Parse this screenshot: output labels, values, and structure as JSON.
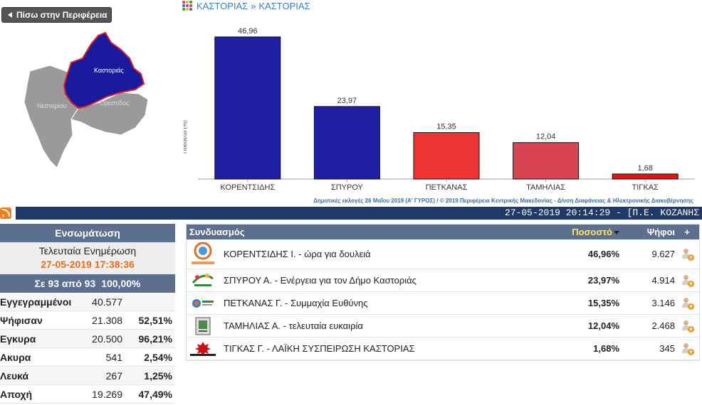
{
  "back_button": {
    "label": "Πίσω στην Περιφέρεια"
  },
  "map": {
    "regions": [
      {
        "name": "Καστοριάς",
        "color": "#1a1a9e",
        "highlighted": true
      },
      {
        "name": "Νεστορίου",
        "color": "#9a9a9a",
        "highlighted": false
      },
      {
        "name": "Ορεστίδος",
        "color": "#9a9a9a",
        "highlighted": false
      }
    ]
  },
  "breadcrumb": {
    "parent": "ΚΑΣΤΟΡΙΑΣ",
    "separator": "»",
    "current": "ΚΑΣΤΟΡΙΑΣ"
  },
  "chart_data": {
    "type": "bar",
    "categories": [
      "ΚΟΡΕΝΤΣΙΔΗΣ",
      "ΣΠΥΡΟΥ",
      "ΠΕΤΚΑΝΑΣ",
      "ΤΑΜΗΛΙΑΣ",
      "ΤΙΓΚΑΣ"
    ],
    "values": [
      46.96,
      23.97,
      15.35,
      12.04,
      1.68
    ],
    "value_labels": [
      "46,96",
      "23,97",
      "15,35",
      "12,04",
      "1,68"
    ],
    "colors": [
      "#1f1fa3",
      "#1f1fa3",
      "#ee3333",
      "#d94452",
      "#e81010"
    ],
    "ylabel": "Ποσοστό (%)",
    "ylim": [
      0,
      50
    ],
    "grid": false
  },
  "credit": "Δημοτικές εκλογές 26 Μαΐου 2019 (Α' ΓΥΡΟΣ) / © 2019 Περιφέρεια Κεντρικής Μακεδονίας - Δ/νση Διαφάνειας & Ηλεκτρονικής Διακυβέρνησης",
  "timebar": "27-05-2019 20:14:29 - [Π.Ε. ΚΟΖΑΝΗΣ",
  "summary": {
    "title": "Ενσωμάτωση",
    "update_label": "Τελευταία Ενημέρωση",
    "update_time": "27-05-2019 17:38:36",
    "count_text": "Σε 93 από  93",
    "count_pct": "100,00%",
    "rows": [
      {
        "label": "Εγγεγραμμένοι",
        "value": "40.577",
        "pct": ""
      },
      {
        "label": "Ψήφισαν",
        "value": "21.308",
        "pct": "52,51%"
      },
      {
        "label": "Εγκυρα",
        "value": "20.500",
        "pct": "96,21%"
      },
      {
        "label": "Ακυρα",
        "value": "541",
        "pct": "2,54%"
      },
      {
        "label": "Λευκά",
        "value": "267",
        "pct": "1,25%"
      },
      {
        "label": "Αποχή",
        "value": "19.269",
        "pct": "47,49%"
      }
    ]
  },
  "results": {
    "headers": {
      "combination": "Συνδυασμός",
      "percent": "Ποσοστό",
      "votes": "Ψήφοι",
      "add": "+"
    },
    "rows": [
      {
        "name": "ΚΟΡΕΝΤΣΙΔΗΣ Ι. - ώρα για δουλειά",
        "pct": "46,96%",
        "votes": "9.627",
        "logo_text": "ώρα για δουλειά",
        "logo_color": "#e2701f"
      },
      {
        "name": "ΣΠΥΡΟΥ Α. - Ενέργεια για τον Δήμο Καστοριάς",
        "pct": "23,97%",
        "votes": "4.914",
        "logo_text": "Ενέργεια",
        "logo_color": "#2e8b3a"
      },
      {
        "name": "ΠΕΤΚΑΝΑΣ Γ. - Συμμαχία Ευθύνης",
        "pct": "15,35%",
        "votes": "3.146",
        "logo_text": "Συμμαχία",
        "logo_color": "#3a7fc1"
      },
      {
        "name": "ΤΑΜΗΛΙΑΣ Α. - τελευταία ευκαιρία",
        "pct": "12,04%",
        "votes": "2.468",
        "logo_text": "",
        "logo_color": "#4a8a4a"
      },
      {
        "name": "ΤΙΓΚΑΣ Γ. - ΛΑΪΚΗ ΣΥΣΠΕΙΡΩΣΗ ΚΑΣΤΟΡΙΑΣ",
        "pct": "1,68%",
        "votes": "345",
        "logo_text": "ΛΑΪΚΗ ΣΥΣΠΕΙΡΩΣΗ",
        "logo_color": "#cc1111"
      }
    ]
  }
}
